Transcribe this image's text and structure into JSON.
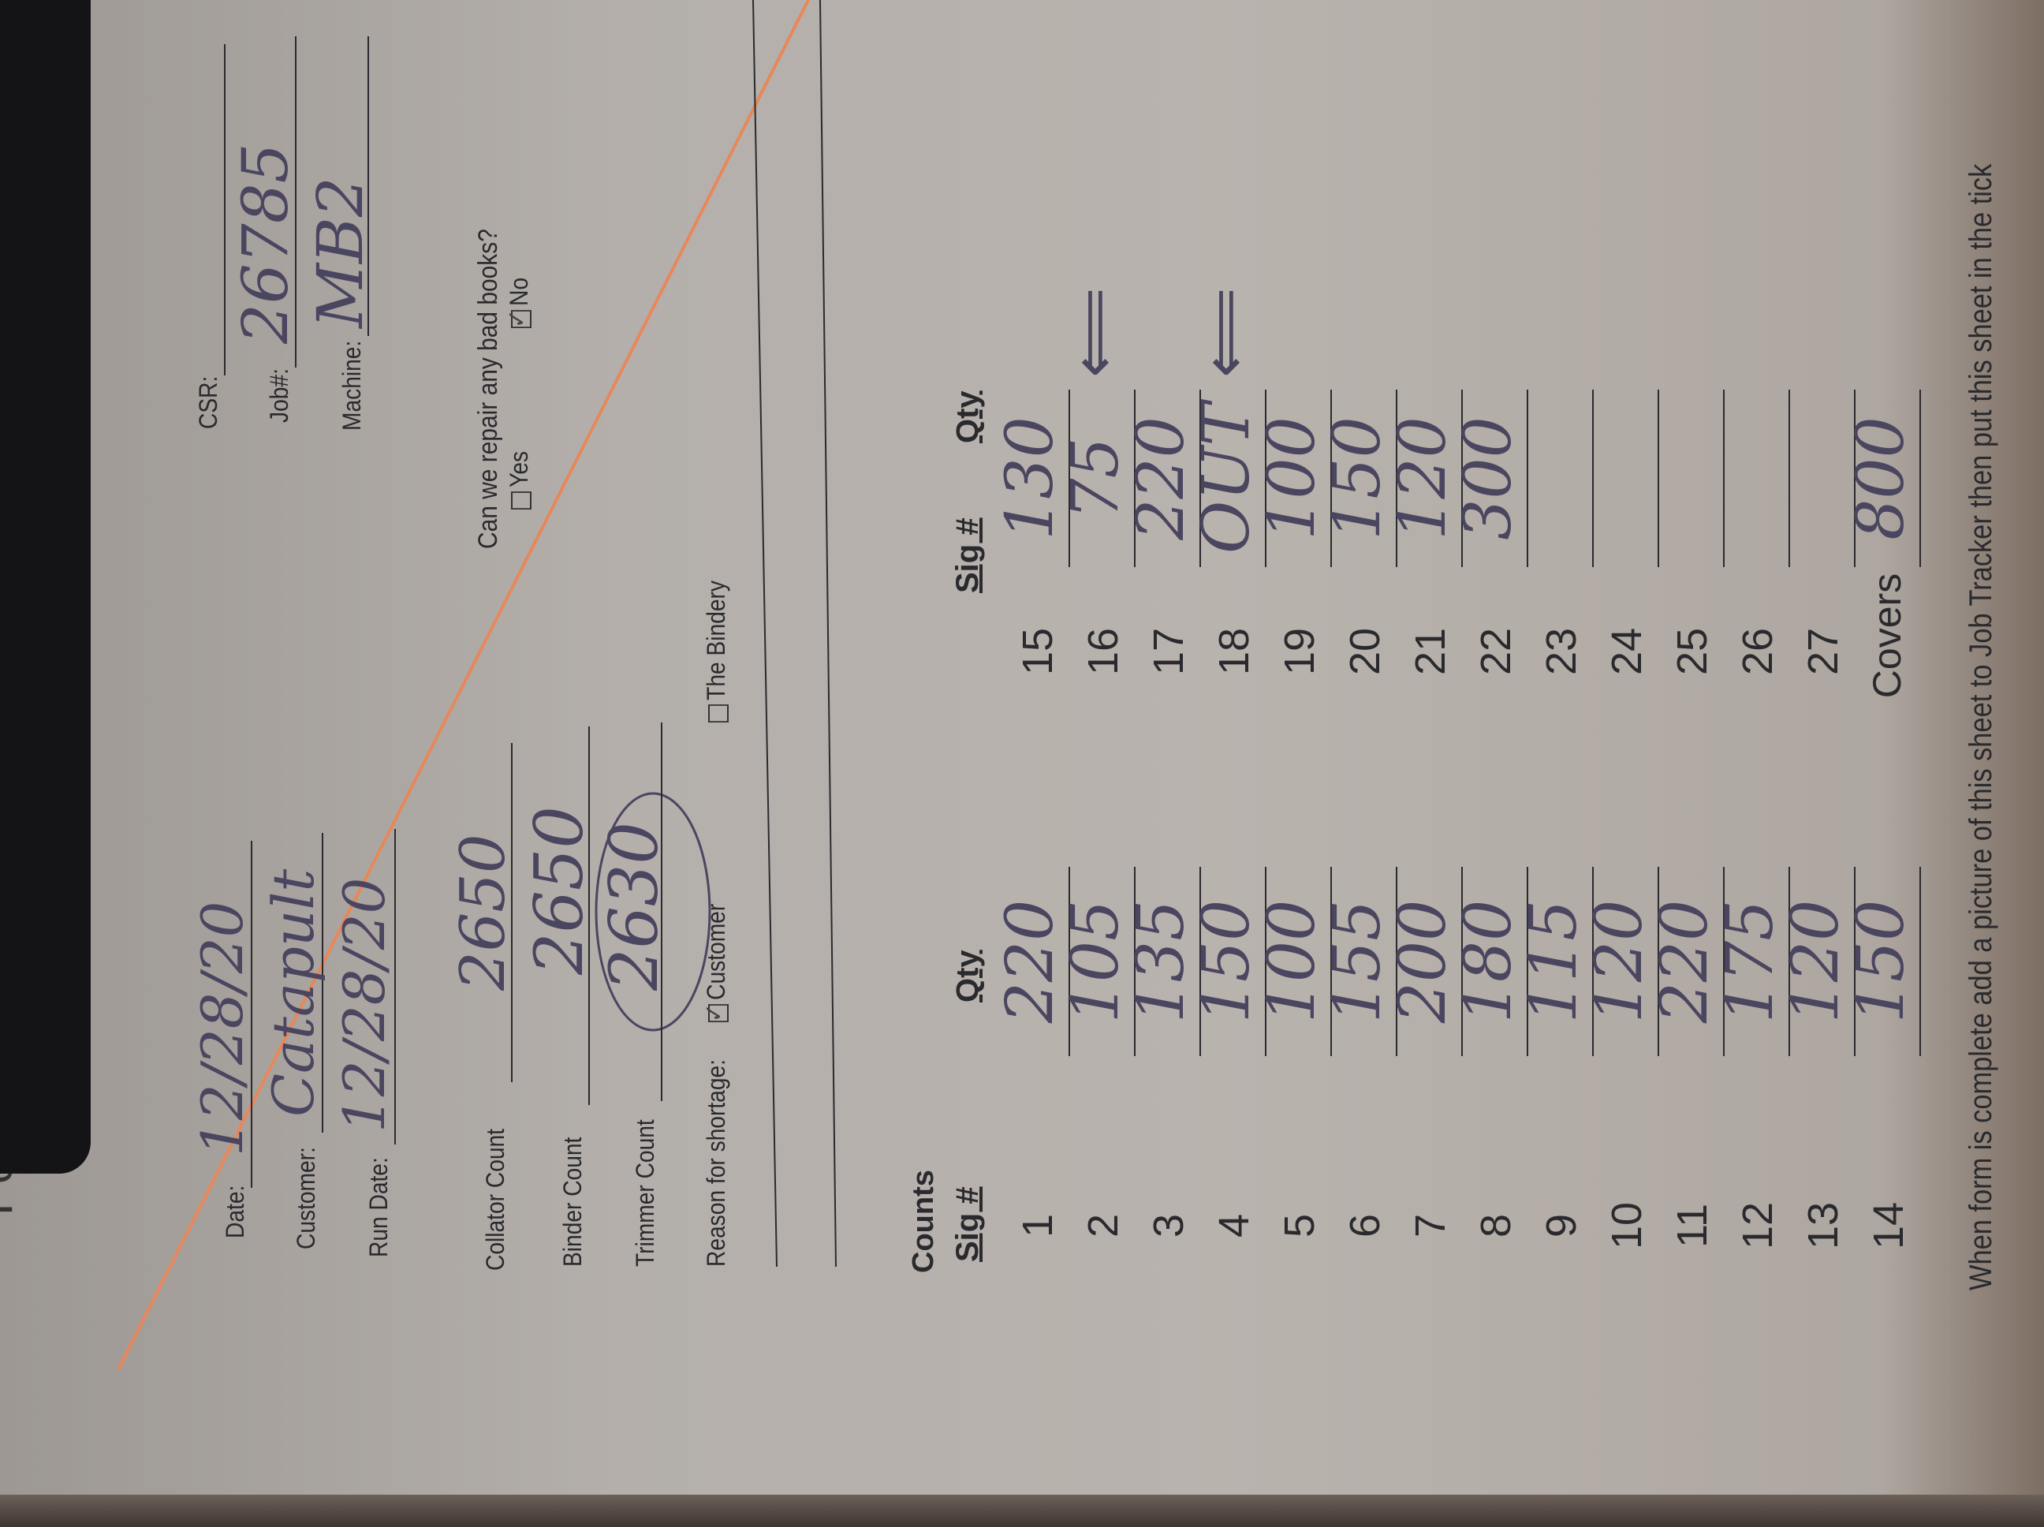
{
  "header": {
    "title_fragment": "Perf",
    "date": {
      "label": "Date:",
      "value": "12/28/20"
    },
    "customer": {
      "label": "Customer:",
      "value": "Catapult"
    },
    "run_date": {
      "label": "Run Date:",
      "value": "12/28/20"
    },
    "csr": {
      "label": "CSR:",
      "value": ""
    },
    "job": {
      "label": "Job#:",
      "value": "26785"
    },
    "machine": {
      "label": "Machine:",
      "value": "MB2"
    }
  },
  "counts_summary": {
    "collator": {
      "label": "Collator Count",
      "value": "2650"
    },
    "binder": {
      "label": "Binder Count",
      "value": "2650"
    },
    "trimmer": {
      "label": "Trimmer Count",
      "value": "2630"
    },
    "reason": {
      "label": "Reason for shortage:",
      "options": [
        {
          "label": "Customer",
          "checked": true
        },
        {
          "label": "The Bindery",
          "checked": false
        }
      ]
    },
    "repair": {
      "question": "Can we repair any bad books?",
      "options": [
        {
          "label": "Yes",
          "checked": false
        },
        {
          "label": "No",
          "checked": true
        }
      ]
    }
  },
  "counts": {
    "title": "Counts",
    "sig_header": "Sig #",
    "qty_header": "Qty",
    "left": [
      {
        "sig": "1",
        "qty": "220"
      },
      {
        "sig": "2",
        "qty": "105"
      },
      {
        "sig": "3",
        "qty": "135"
      },
      {
        "sig": "4",
        "qty": "150"
      },
      {
        "sig": "5",
        "qty": "100"
      },
      {
        "sig": "6",
        "qty": "155"
      },
      {
        "sig": "7",
        "qty": "200"
      },
      {
        "sig": "8",
        "qty": "180"
      },
      {
        "sig": "9",
        "qty": "115"
      },
      {
        "sig": "10",
        "qty": "120"
      },
      {
        "sig": "11",
        "qty": "220"
      },
      {
        "sig": "12",
        "qty": "175"
      },
      {
        "sig": "13",
        "qty": "120"
      },
      {
        "sig": "14",
        "qty": "150"
      }
    ],
    "right": [
      {
        "sig": "15",
        "qty": "130"
      },
      {
        "sig": "16",
        "qty": "75",
        "arrow": true
      },
      {
        "sig": "17",
        "qty": "220"
      },
      {
        "sig": "18",
        "qty": "OUT",
        "arrow": true
      },
      {
        "sig": "19",
        "qty": "100"
      },
      {
        "sig": "20",
        "qty": "150"
      },
      {
        "sig": "21",
        "qty": "120"
      },
      {
        "sig": "22",
        "qty": "300"
      },
      {
        "sig": "23",
        "qty": ""
      },
      {
        "sig": "24",
        "qty": ""
      },
      {
        "sig": "25",
        "qty": ""
      },
      {
        "sig": "26",
        "qty": ""
      },
      {
        "sig": "27",
        "qty": ""
      },
      {
        "sig": "Covers",
        "qty": "800"
      }
    ]
  },
  "footer": {
    "text": "When form is complete add a picture of this sheet to Job Tracker then put this sheet in the tick"
  },
  "colors": {
    "paper": "#b9b3ae",
    "ink": "#4b4660",
    "rule_orange": "#e8875a",
    "print": "#2a2a2e"
  }
}
